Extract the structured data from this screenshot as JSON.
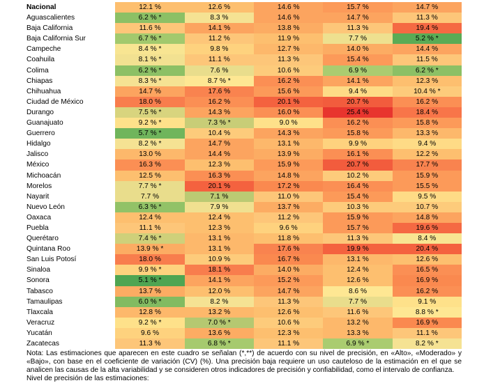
{
  "table": {
    "rows": [
      {
        "name": "Nacional",
        "values": [
          "12.1 %",
          "12.6 %",
          "14.6 %",
          "15.7 %",
          "14.7 %"
        ],
        "colors": [
          "#fdbf6f",
          "#fdbf6f",
          "#fca45f",
          "#fc9a59",
          "#fca45f"
        ]
      },
      {
        "name": "Aguascalientes",
        "values": [
          "6.2 % *",
          "8.3 %",
          "14.6 %",
          "14.7 %",
          "11.3 %"
        ],
        "colors": [
          "#8cc065",
          "#f5e293",
          "#fca45f",
          "#fca45f",
          "#fdc679"
        ]
      },
      {
        "name": "Baja California",
        "values": [
          "11.6 %",
          "14.1 %",
          "13.8 %",
          "11.3 %",
          "19.4 %"
        ],
        "colors": [
          "#fdc679",
          "#fca45f",
          "#fcac63",
          "#fdc679",
          "#f56943"
        ]
      },
      {
        "name": "Baja California Sur",
        "values": [
          "6.7 % *",
          "11.2 %",
          "11.9 %",
          "7.7 %",
          "5.2 % *"
        ],
        "colors": [
          "#a2c96d",
          "#fdc679",
          "#fdbf6f",
          "#eee08f",
          "#5aab55"
        ]
      },
      {
        "name": "Campeche",
        "values": [
          "8.4 % *",
          "9.8 %",
          "12.7 %",
          "14.0 %",
          "14.4 %"
        ],
        "colors": [
          "#f8e592",
          "#fed27e",
          "#fdb86b",
          "#fcac63",
          "#fca45f"
        ]
      },
      {
        "name": "Coahuila",
        "values": [
          "8.1 % *",
          "11.1 %",
          "11.3 %",
          "15.4 %",
          "11.5 %"
        ],
        "colors": [
          "#f2e191",
          "#fdc679",
          "#fdc679",
          "#fc9a59",
          "#fdc679"
        ]
      },
      {
        "name": "Colima",
        "values": [
          "6.2 % *",
          "7.6 %",
          "10.6 %",
          "6.9 %",
          "6.2 % *"
        ],
        "colors": [
          "#8cc065",
          "#e9dd8c",
          "#fdcb7b",
          "#aacc70",
          "#8cc065"
        ]
      },
      {
        "name": "Chiapas",
        "values": [
          "8.3 % *",
          "8.7 % *",
          "16.2 %",
          "14.1 %",
          "12.3 %"
        ],
        "colors": [
          "#f5e293",
          "#fee793",
          "#fb8f54",
          "#fca45f",
          "#fdbf6f"
        ]
      },
      {
        "name": "Chihuahua",
        "values": [
          "14.7 %",
          "17.6 %",
          "15.6 %",
          "9.4 %",
          "10.4 % *"
        ],
        "colors": [
          "#fca45f",
          "#f9834f",
          "#fc9a59",
          "#fedb86",
          "#fdcb7b"
        ]
      },
      {
        "name": "Ciudad de México",
        "values": [
          "18.0 %",
          "16.2 %",
          "20.1 %",
          "20.7 %",
          "16.2 %"
        ],
        "colors": [
          "#f87d4d",
          "#fb8f54",
          "#f4623f",
          "#f25c3d",
          "#fb8f54"
        ]
      },
      {
        "name": "Durango",
        "values": [
          "7.5 % *",
          "14.3 %",
          "16.0 %",
          "25.4 %",
          "18.4 %"
        ],
        "colors": [
          "#d8d47e",
          "#fca45f",
          "#fb8f54",
          "#e8352e",
          "#f87549"
        ]
      },
      {
        "name": "Guanajuato",
        "values": [
          "9.2 % *",
          "7.3 % *",
          "9.0 %",
          "16.2 %",
          "15.8 %"
        ],
        "colors": [
          "#fee18a",
          "#c8cd77",
          "#fee18a",
          "#fb8f54",
          "#fc9a59"
        ]
      },
      {
        "name": "Guerrero",
        "values": [
          "5.7 % *",
          "10.4 %",
          "14.3 %",
          "15.8 %",
          "13.3 %"
        ],
        "colors": [
          "#70b55c",
          "#fdcb7b",
          "#fca45f",
          "#fc9a59",
          "#fdb86b"
        ]
      },
      {
        "name": "Hidalgo",
        "values": [
          "8.2 % *",
          "14.7 %",
          "13.1 %",
          "9.9 %",
          "9.4 %"
        ],
        "colors": [
          "#f5e293",
          "#fca45f",
          "#fdb86b",
          "#fed27e",
          "#fedb86"
        ]
      },
      {
        "name": "Jalisco",
        "values": [
          "13.0 %",
          "14.4 %",
          "13.9 %",
          "16.1 %",
          "12.2 %"
        ],
        "colors": [
          "#fdb86b",
          "#fca45f",
          "#fcac63",
          "#fb8f54",
          "#fdbf6f"
        ]
      },
      {
        "name": "México",
        "values": [
          "16.3 %",
          "12.3 %",
          "15.9 %",
          "20.7 %",
          "17.7 %"
        ],
        "colors": [
          "#fb8f54",
          "#fdbf6f",
          "#fc9a59",
          "#f25c3d",
          "#f9834f"
        ]
      },
      {
        "name": "Michoacán",
        "values": [
          "12.5 %",
          "16.3 %",
          "14.8 %",
          "10.2 %",
          "15.9 %"
        ],
        "colors": [
          "#fdbf6f",
          "#fb8f54",
          "#fca45f",
          "#fdcb7b",
          "#fc9a59"
        ]
      },
      {
        "name": "Morelos",
        "values": [
          "7.7 % *",
          "20.1 %",
          "17.2 %",
          "16.4 %",
          "15.5 %"
        ],
        "colors": [
          "#e9dd8c",
          "#f4623f",
          "#fa894f",
          "#fb8f54",
          "#fc9a59"
        ]
      },
      {
        "name": "Nayarit",
        "values": [
          "7.7 %",
          "7.1 %",
          "11.0 %",
          "15.4 %",
          "9.5 %"
        ],
        "colors": [
          "#e9dd8c",
          "#bbca73",
          "#fdc679",
          "#fc9a59",
          "#fedb86"
        ]
      },
      {
        "name": "Nuevo León",
        "values": [
          "6.3 % *",
          "7.9 %",
          "13.7 %",
          "10.3 %",
          "10.7 %"
        ],
        "colors": [
          "#92c267",
          "#f0e090",
          "#fcac63",
          "#fdcb7b",
          "#fdcb7b"
        ]
      },
      {
        "name": "Oaxaca",
        "values": [
          "12.4 %",
          "12.4 %",
          "11.2 %",
          "15.9 %",
          "14.8 %"
        ],
        "colors": [
          "#fdbf6f",
          "#fdbf6f",
          "#fdc679",
          "#fc9a59",
          "#fca45f"
        ]
      },
      {
        "name": "Puebla",
        "values": [
          "11.1 %",
          "12.3 %",
          "9.6 %",
          "15.7 %",
          "19.6 %"
        ],
        "colors": [
          "#fdc679",
          "#fdbf6f",
          "#fed27e",
          "#fc9a59",
          "#f56943"
        ]
      },
      {
        "name": "Querétaro",
        "values": [
          "7.4 % *",
          "13.1 %",
          "11.8 %",
          "11.3 %",
          "8.4 %"
        ],
        "colors": [
          "#cfd07a",
          "#fdb86b",
          "#fdbf6f",
          "#fdc679",
          "#f8e592"
        ]
      },
      {
        "name": "Quintana Roo",
        "values": [
          "13.9 % *",
          "13.1 %",
          "17.6 %",
          "19.9 %",
          "20.4 %"
        ],
        "colors": [
          "#fcac63",
          "#fdb86b",
          "#f9834f",
          "#f4623f",
          "#f4623f"
        ]
      },
      {
        "name": "San Luis Potosí",
        "values": [
          "18.0 %",
          "10.9 %",
          "16.7 %",
          "13.1 %",
          "12.6 %"
        ],
        "colors": [
          "#f87d4d",
          "#fdcb7b",
          "#fa894f",
          "#fdb86b",
          "#fdbf6f"
        ]
      },
      {
        "name": "Sinaloa",
        "values": [
          "9.9 % *",
          "18.1 %",
          "14.0 %",
          "12.4 %",
          "16.5 %"
        ],
        "colors": [
          "#fed27e",
          "#f87d4d",
          "#fcac63",
          "#fdbf6f",
          "#fb8f54"
        ]
      },
      {
        "name": "Sonora",
        "values": [
          "5.1 % *",
          "14.1 %",
          "15.2 %",
          "12.6 %",
          "16.9 %"
        ],
        "colors": [
          "#4fa552",
          "#fca45f",
          "#fc9a59",
          "#fdbf6f",
          "#fa894f"
        ]
      },
      {
        "name": "Tabasco",
        "values": [
          "13.7 %",
          "12.0 %",
          "14.7 %",
          "8.6 %",
          "16.2 %"
        ],
        "colors": [
          "#fcac63",
          "#fdbf6f",
          "#fca45f",
          "#fee793",
          "#fb8f54"
        ]
      },
      {
        "name": "Tamaulipas",
        "values": [
          "6.0 % *",
          "8.2 %",
          "11.3 %",
          "7.7 %",
          "9.1 %"
        ],
        "colors": [
          "#82bb61",
          "#f5e293",
          "#fdc679",
          "#e9dd8c",
          "#fee18a"
        ]
      },
      {
        "name": "Tlaxcala",
        "values": [
          "12.8 %",
          "13.2 %",
          "12.6 %",
          "11.6 %",
          "8.8 % *"
        ],
        "colors": [
          "#fdb86b",
          "#fdb86b",
          "#fdbf6f",
          "#fdc679",
          "#fee793"
        ]
      },
      {
        "name": "Veracruz",
        "values": [
          "9.2 % *",
          "7.0 % *",
          "10.6 %",
          "13.2 %",
          "16.9 %"
        ],
        "colors": [
          "#fee18a",
          "#b5c871",
          "#fdcb7b",
          "#fdb86b",
          "#fa894f"
        ]
      },
      {
        "name": "Yucatán",
        "values": [
          "9.6 %",
          "13.6 %",
          "12.3 %",
          "13.3 %",
          "11.1 %"
        ],
        "colors": [
          "#fed27e",
          "#fcac63",
          "#fdbf6f",
          "#fdb86b",
          "#fdc679"
        ]
      },
      {
        "name": "Zacatecas",
        "values": [
          "11.3 %",
          "6.8 % *",
          "11.1 %",
          "6.9 % *",
          "8.2 % *"
        ],
        "colors": [
          "#fdc679",
          "#a6ca6e",
          "#fdc679",
          "#aacc70",
          "#f5e293"
        ]
      }
    ]
  },
  "note": {
    "paragraph": "Nota: Las estimaciones que aparecen en este cuadro se señalan (*,**) de acuerdo con su nivel de precisión, en «Alto», «Moderado» y «Bajo», con base en el coeficiente de variación (CV) (%). Una precisión baja requiere un uso cauteloso de la estimación en el que se analicen las causas de la alta variabilidad y se consideren otros indicadores de precisión y confiabilidad, como el intervalo de confianza.",
    "cutoff_line": "Nivel de precisión de las estimaciones:"
  }
}
